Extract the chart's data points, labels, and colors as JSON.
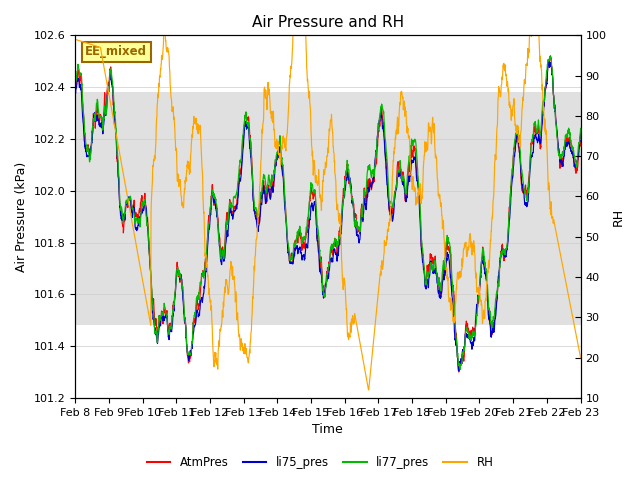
{
  "title": "Air Pressure and RH",
  "xlabel": "Time",
  "ylabel_left": "Air Pressure (kPa)",
  "ylabel_right": "RH",
  "ylim_left": [
    101.2,
    102.6
  ],
  "ylim_right": [
    10,
    100
  ],
  "yticks_left": [
    101.2,
    101.4,
    101.6,
    101.8,
    102.0,
    102.2,
    102.4,
    102.6
  ],
  "yticks_right": [
    10,
    20,
    30,
    40,
    50,
    60,
    70,
    80,
    90,
    100
  ],
  "xtick_labels": [
    "Feb 8",
    "Feb 9",
    "Feb 10",
    "Feb 11",
    "Feb 12",
    "Feb 13",
    "Feb 14",
    "Feb 15",
    "Feb 16",
    "Feb 17",
    "Feb 18",
    "Feb 19",
    "Feb 20",
    "Feb 21",
    "Feb 22",
    "Feb 23"
  ],
  "colors": {
    "AtmPres": "#ff0000",
    "li75_pres": "#0000cc",
    "li77_pres": "#00bb00",
    "RH": "#ffa500"
  },
  "annotation_text": "EE_mixed",
  "annotation_color": "#996600",
  "annotation_bg": "#ffff99",
  "bg_band_lower": 101.48,
  "bg_band_upper": 102.38,
  "bg_band_color": "#e0e0e0",
  "legend_labels": [
    "AtmPres",
    "li75_pres",
    "li77_pres",
    "RH"
  ],
  "title_fontsize": 11,
  "axis_label_fontsize": 9,
  "tick_fontsize": 8
}
